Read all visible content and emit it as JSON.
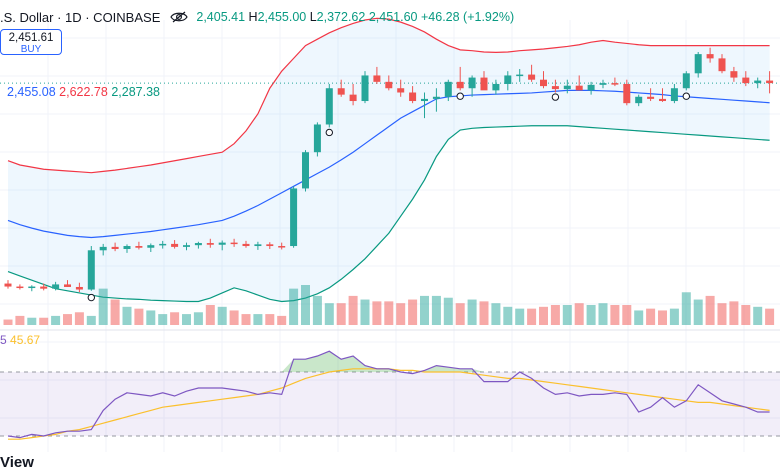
{
  "header": {
    "title": ".S. Dollar · 1D · COINBASE",
    "ohlc_prefix": "",
    "open": "2,405.41",
    "high_label": "H",
    "high": "2,455.00",
    "low_label": "L",
    "low": "2,372.62",
    "close": "2,451.60",
    "change": "+46.28 (+1.92%)"
  },
  "price_box": {
    "price": "2,451.61",
    "label": "BUY"
  },
  "bb_legend": {
    "basis": "2,455.08",
    "upper": "2,622.78",
    "lower": "2,287.38"
  },
  "rsi_legend": {
    "rsi": "5",
    "ma": "45.67"
  },
  "watermark": "View",
  "colors": {
    "up": "#26a69a",
    "down": "#ef5350",
    "bb_basis": "#2962ff",
    "bb_upper": "#f23645",
    "bb_lower": "#089981",
    "rsi_line": "#7e57c2",
    "rsi_ma": "#fbc02d"
  },
  "chart_data": {
    "type": "candlestick",
    "upper_band": [
      2390,
      2380,
      2375,
      2370,
      2368,
      2366,
      2364,
      2362,
      2365,
      2368,
      2372,
      2376,
      2380,
      2385,
      2390,
      2395,
      2400,
      2405,
      2410,
      2430,
      2460,
      2500,
      2560,
      2600,
      2630,
      2660,
      2675,
      2690,
      2702,
      2712,
      2720,
      2724,
      2722,
      2715,
      2705,
      2692,
      2675,
      2660,
      2650,
      2648,
      2645,
      2644,
      2645,
      2648,
      2650,
      2652,
      2655,
      2658,
      2662,
      2668,
      2672,
      2668,
      2665,
      2662,
      2660,
      2660,
      2660,
      2660,
      2660,
      2660,
      2660,
      2660,
      2660,
      2660,
      2660
    ],
    "basis": [
      2250,
      2240,
      2232,
      2225,
      2220,
      2215,
      2212,
      2210,
      2212,
      2215,
      2218,
      2221,
      2224,
      2228,
      2232,
      2236,
      2240,
      2245,
      2250,
      2260,
      2272,
      2285,
      2300,
      2315,
      2330,
      2345,
      2360,
      2375,
      2392,
      2410,
      2430,
      2450,
      2470,
      2490,
      2505,
      2520,
      2535,
      2540,
      2542,
      2544,
      2545,
      2546,
      2547,
      2548,
      2549,
      2551,
      2553,
      2555,
      2555,
      2555,
      2554,
      2553,
      2551,
      2549,
      2547,
      2545,
      2542,
      2540,
      2538,
      2536,
      2534,
      2532,
      2530,
      2528,
      2526
    ],
    "lower_band": [
      2130,
      2120,
      2110,
      2100,
      2090,
      2085,
      2080,
      2075,
      2070,
      2068,
      2066,
      2065,
      2063,
      2062,
      2061,
      2060,
      2060,
      2068,
      2080,
      2092,
      2085,
      2075,
      2065,
      2060,
      2062,
      2068,
      2078,
      2092,
      2112,
      2135,
      2160,
      2190,
      2220,
      2260,
      2300,
      2345,
      2400,
      2440,
      2462,
      2466,
      2468,
      2469,
      2470,
      2471,
      2472,
      2472,
      2472,
      2472,
      2470,
      2468,
      2466,
      2464,
      2462,
      2460,
      2458,
      2456,
      2454,
      2452,
      2450,
      2448,
      2446,
      2444,
      2442,
      2440,
      2438
    ],
    "candles": [
      {
        "o": 2102,
        "h": 2110,
        "l": 2090,
        "c": 2095
      },
      {
        "o": 2095,
        "h": 2100,
        "l": 2088,
        "c": 2092
      },
      {
        "o": 2092,
        "h": 2098,
        "l": 2084,
        "c": 2095
      },
      {
        "o": 2095,
        "h": 2102,
        "l": 2086,
        "c": 2090
      },
      {
        "o": 2090,
        "h": 2106,
        "l": 2086,
        "c": 2100
      },
      {
        "o": 2100,
        "h": 2110,
        "l": 2094,
        "c": 2094
      },
      {
        "o": 2094,
        "h": 2104,
        "l": 2082,
        "c": 2088
      },
      {
        "o": 2088,
        "h": 2190,
        "l": 2085,
        "c": 2180
      },
      {
        "o": 2180,
        "h": 2195,
        "l": 2168,
        "c": 2188
      },
      {
        "o": 2188,
        "h": 2198,
        "l": 2178,
        "c": 2183
      },
      {
        "o": 2183,
        "h": 2194,
        "l": 2174,
        "c": 2190
      },
      {
        "o": 2190,
        "h": 2200,
        "l": 2182,
        "c": 2186
      },
      {
        "o": 2186,
        "h": 2196,
        "l": 2176,
        "c": 2192
      },
      {
        "o": 2192,
        "h": 2202,
        "l": 2184,
        "c": 2195
      },
      {
        "o": 2195,
        "h": 2204,
        "l": 2184,
        "c": 2188
      },
      {
        "o": 2188,
        "h": 2198,
        "l": 2180,
        "c": 2192
      },
      {
        "o": 2192,
        "h": 2200,
        "l": 2184,
        "c": 2197
      },
      {
        "o": 2197,
        "h": 2207,
        "l": 2186,
        "c": 2193
      },
      {
        "o": 2193,
        "h": 2203,
        "l": 2180,
        "c": 2198
      },
      {
        "o": 2198,
        "h": 2207,
        "l": 2188,
        "c": 2195
      },
      {
        "o": 2195,
        "h": 2202,
        "l": 2186,
        "c": 2190
      },
      {
        "o": 2190,
        "h": 2200,
        "l": 2181,
        "c": 2194
      },
      {
        "o": 2194,
        "h": 2199,
        "l": 2183,
        "c": 2190
      },
      {
        "o": 2190,
        "h": 2198,
        "l": 2182,
        "c": 2188
      },
      {
        "o": 2190,
        "h": 2330,
        "l": 2186,
        "c": 2325
      },
      {
        "o": 2325,
        "h": 2415,
        "l": 2318,
        "c": 2410
      },
      {
        "o": 2410,
        "h": 2480,
        "l": 2400,
        "c": 2475
      },
      {
        "o": 2475,
        "h": 2570,
        "l": 2468,
        "c": 2560
      },
      {
        "o": 2560,
        "h": 2580,
        "l": 2540,
        "c": 2545
      },
      {
        "o": 2545,
        "h": 2570,
        "l": 2520,
        "c": 2530
      },
      {
        "o": 2530,
        "h": 2600,
        "l": 2525,
        "c": 2590
      },
      {
        "o": 2590,
        "h": 2610,
        "l": 2570,
        "c": 2575
      },
      {
        "o": 2575,
        "h": 2590,
        "l": 2555,
        "c": 2560
      },
      {
        "o": 2560,
        "h": 2580,
        "l": 2540,
        "c": 2550
      },
      {
        "o": 2550,
        "h": 2565,
        "l": 2525,
        "c": 2530
      },
      {
        "o": 2530,
        "h": 2550,
        "l": 2490,
        "c": 2535
      },
      {
        "o": 2535,
        "h": 2560,
        "l": 2505,
        "c": 2540
      },
      {
        "o": 2540,
        "h": 2580,
        "l": 2530,
        "c": 2575
      },
      {
        "o": 2575,
        "h": 2610,
        "l": 2555,
        "c": 2560
      },
      {
        "o": 2560,
        "h": 2590,
        "l": 2540,
        "c": 2585
      },
      {
        "o": 2585,
        "h": 2600,
        "l": 2560,
        "c": 2555
      },
      {
        "o": 2555,
        "h": 2580,
        "l": 2545,
        "c": 2570
      },
      {
        "o": 2570,
        "h": 2600,
        "l": 2555,
        "c": 2590
      },
      {
        "o": 2590,
        "h": 2605,
        "l": 2575,
        "c": 2592
      },
      {
        "o": 2592,
        "h": 2615,
        "l": 2575,
        "c": 2580
      },
      {
        "o": 2580,
        "h": 2600,
        "l": 2560,
        "c": 2565
      },
      {
        "o": 2565,
        "h": 2580,
        "l": 2550,
        "c": 2558
      },
      {
        "o": 2558,
        "h": 2580,
        "l": 2548,
        "c": 2566
      },
      {
        "o": 2566,
        "h": 2590,
        "l": 2555,
        "c": 2555
      },
      {
        "o": 2555,
        "h": 2575,
        "l": 2545,
        "c": 2568
      },
      {
        "o": 2568,
        "h": 2580,
        "l": 2560,
        "c": 2572
      },
      {
        "o": 2572,
        "h": 2585,
        "l": 2565,
        "c": 2570
      },
      {
        "o": 2570,
        "h": 2580,
        "l": 2520,
        "c": 2525
      },
      {
        "o": 2525,
        "h": 2545,
        "l": 2518,
        "c": 2540
      },
      {
        "o": 2540,
        "h": 2560,
        "l": 2530,
        "c": 2535
      },
      {
        "o": 2535,
        "h": 2560,
        "l": 2528,
        "c": 2530
      },
      {
        "o": 2530,
        "h": 2570,
        "l": 2525,
        "c": 2560
      },
      {
        "o": 2560,
        "h": 2600,
        "l": 2555,
        "c": 2595
      },
      {
        "o": 2595,
        "h": 2645,
        "l": 2585,
        "c": 2640
      },
      {
        "o": 2640,
        "h": 2655,
        "l": 2620,
        "c": 2630
      },
      {
        "o": 2630,
        "h": 2640,
        "l": 2595,
        "c": 2600
      },
      {
        "o": 2600,
        "h": 2610,
        "l": 2575,
        "c": 2585
      },
      {
        "o": 2585,
        "h": 2600,
        "l": 2565,
        "c": 2572
      },
      {
        "o": 2572,
        "h": 2585,
        "l": 2560,
        "c": 2578
      },
      {
        "o": 2578,
        "h": 2600,
        "l": 2548,
        "c": 2572
      }
    ],
    "volume": [
      3,
      5,
      4,
      4,
      5,
      6,
      7,
      5,
      20,
      14,
      10,
      9,
      8,
      6,
      7,
      6,
      7,
      11,
      10,
      8,
      6,
      6,
      6,
      5,
      20,
      22,
      16,
      12,
      12,
      16,
      14,
      13,
      13,
      12,
      14,
      16,
      16,
      15,
      12,
      14,
      13,
      12,
      10,
      9,
      9,
      10,
      11,
      11,
      12,
      11,
      12,
      11,
      11,
      8,
      9,
      8,
      9,
      18,
      14,
      16,
      12,
      13,
      11,
      10,
      9
    ],
    "rsi": [
      30,
      29,
      31,
      30,
      32,
      33,
      33,
      34,
      46,
      53,
      57,
      56,
      55,
      57,
      55,
      58,
      60,
      60,
      60,
      59,
      58,
      56,
      57,
      56,
      78,
      78,
      80,
      83,
      78,
      80,
      74,
      72,
      72,
      70,
      69,
      71,
      74,
      73,
      72,
      72,
      64,
      64,
      64,
      70,
      66,
      60,
      56,
      57,
      55,
      56,
      56,
      57,
      56,
      45,
      48,
      54,
      48,
      52,
      62,
      57,
      52,
      50,
      48,
      45,
      45
    ],
    "rsi_ma": [
      28,
      28,
      29,
      30,
      31,
      33,
      34,
      36,
      38,
      40,
      42,
      44,
      46,
      48,
      49,
      50,
      51,
      52,
      53,
      54,
      55,
      56,
      58,
      60,
      63,
      66,
      68,
      70,
      71,
      72,
      72,
      72,
      72,
      71,
      71,
      70,
      70,
      70,
      70,
      69,
      68,
      67,
      66,
      66,
      65,
      64,
      63,
      62,
      61,
      60,
      59,
      58,
      57,
      56,
      55,
      54,
      53,
      52,
      51,
      51,
      50,
      49,
      48,
      47,
      46
    ],
    "price_range": [
      2040,
      2720
    ],
    "rsi_levels": [
      70,
      30
    ],
    "markers": [
      7,
      27,
      38,
      46,
      57
    ]
  }
}
